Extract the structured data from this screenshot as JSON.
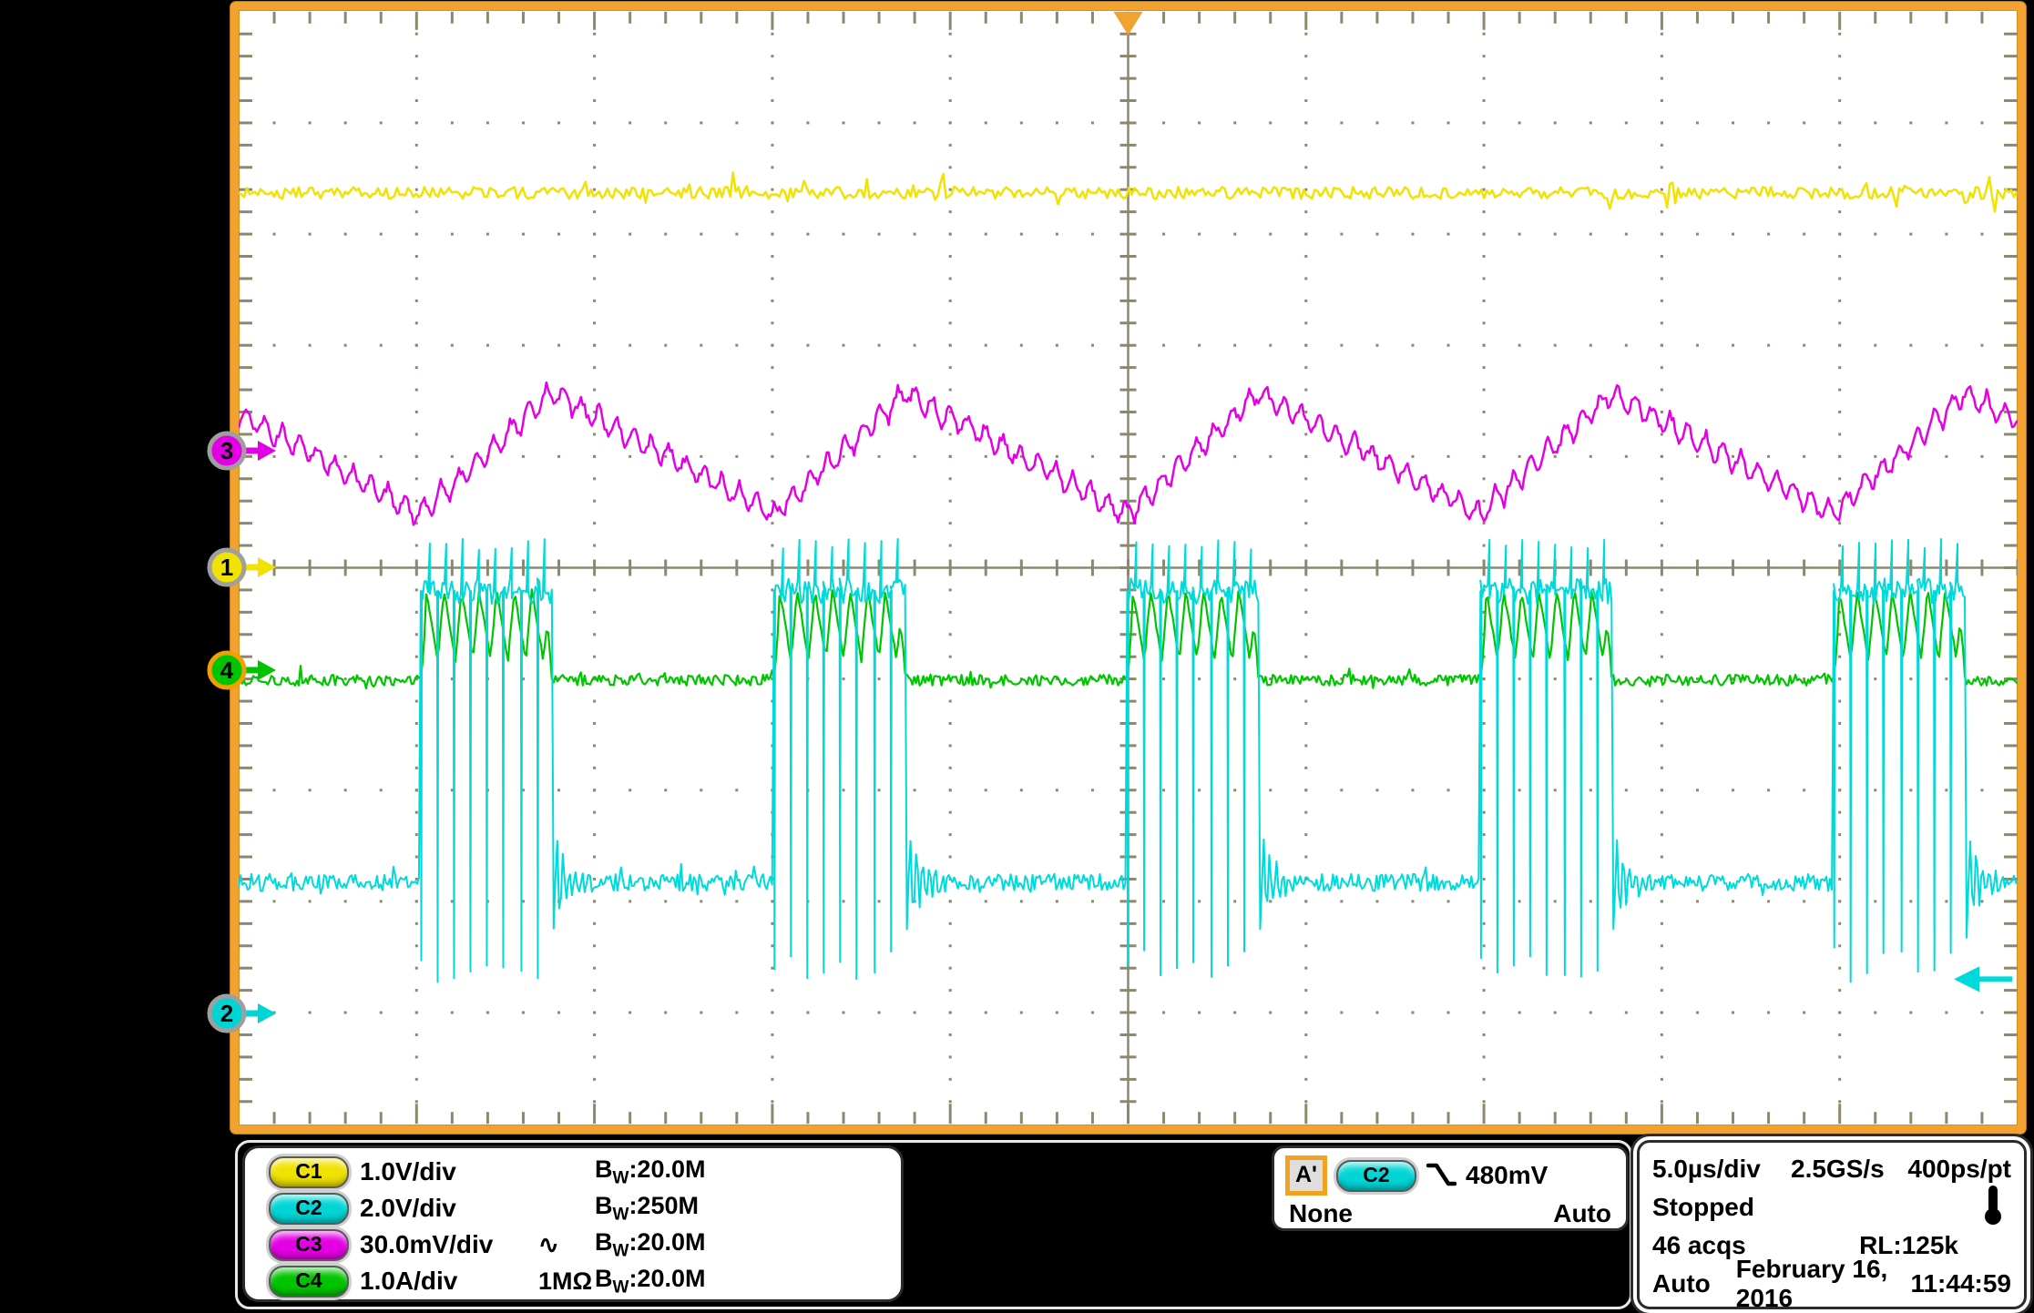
{
  "labels": {
    "bw_main": "B",
    "bw_sub": "W"
  },
  "scope": {
    "channels": [
      {
        "label": "C1",
        "color": "#f0e202",
        "ring": "#9f9f9f",
        "marker_label": "1",
        "scale": "1.0V/div",
        "pre_bw": "",
        "bw": ":20.0M"
      },
      {
        "label": "C2",
        "color": "#00d5d5",
        "ring": "#9f9f9f",
        "marker_label": "2",
        "scale": "2.0V/div",
        "pre_bw": "",
        "bw": ":250M"
      },
      {
        "label": "C3",
        "color": "#e400e4",
        "ring": "#9f9f9f",
        "marker_label": "3",
        "scale": "30.0mV/div",
        "pre_bw": "∿",
        "bw": ":20.0M"
      },
      {
        "label": "C4",
        "color": "#00c400",
        "ring": "#f0a000",
        "marker_label": "4",
        "scale": "1.0A/div",
        "pre_bw": "1MΩ",
        "bw": ":20.0M"
      }
    ],
    "trigger": {
      "badge": "A'",
      "source": "C2",
      "level": "480mV",
      "mode_left": "None",
      "mode_right": "Auto"
    },
    "timebase": {
      "scale": "5.0µs/div",
      "rate": "2.5GS/s",
      "resolution": "400ps/pt",
      "status": "Stopped",
      "acqs": "46 acqs",
      "record": "RL:125k",
      "mode": "Auto",
      "date": "February 16, 2016",
      "time": "11:44:59"
    }
  },
  "chart_data": {
    "type": "line",
    "title": "Oscilloscope waveform display",
    "x_divisions": 10,
    "y_divisions": 10,
    "time_per_div": "5.0µs",
    "grid": {
      "border_color": "#f2a230",
      "tick_color": "#8c8870",
      "bg": "#ffffff",
      "trigger_pos_div": 5.0,
      "trigger_level_div": 8.7
    },
    "series": [
      {
        "channel": "C1",
        "color": "#f0e202",
        "volts_per_div": "1.0V/div",
        "shape": "noisy-flat",
        "y_div": 1.63,
        "noise_div": 0.05,
        "zero_marker_div": 5.01
      },
      {
        "channel": "C3",
        "color": "#e400e4",
        "volts_per_div": "30.0mV/div",
        "shape": "sawtooth",
        "peak_y_div": 3.43,
        "valley_y_div": 4.52,
        "valley_x_div": 1.02,
        "period_div": 1.986,
        "rise_frac": 0.374,
        "ripple_amp_div": 0.055,
        "zero_marker_div": 3.96
      },
      {
        "channel": "C4",
        "color": "#00c400",
        "volts_per_div": "1.0A/div",
        "shape": "triangle-bursts",
        "base_y_div": 6.01,
        "peak_y_div": 5.2,
        "low_y_div": 5.83,
        "burst_start_div": 1.02,
        "burst_width_div": 0.742,
        "burst_period_div": 1.986,
        "pulses_per_burst": 7.5,
        "zero_marker_div": 5.93
      },
      {
        "channel": "C2",
        "color": "#00d9d9",
        "volts_per_div": "2.0V/div",
        "shape": "pulse-bursts",
        "base_y_div": 7.83,
        "high_y_div": 5.21,
        "spike_top_div": 4.74,
        "spike_bottom_div": 8.74,
        "burst_start_div": 1.02,
        "burst_width_div": 0.742,
        "burst_period_div": 1.986,
        "pulses_per_burst": 8,
        "ring_decay_div": 0.28,
        "zero_marker_div": 9.02
      }
    ]
  }
}
